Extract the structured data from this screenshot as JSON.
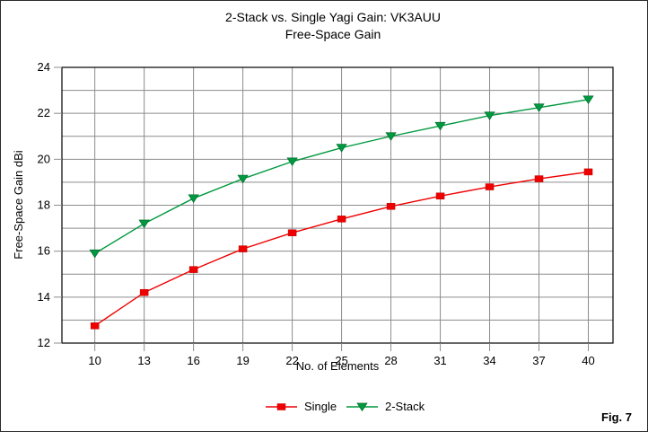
{
  "figure": {
    "title_line1": "2-Stack vs. Single Yagi Gain: VK3AUU",
    "title_line2": "Free-Space Gain",
    "figure_label": "Fig. 7"
  },
  "chart_data": {
    "type": "line",
    "title": "2-Stack vs. Single Yagi Gain: VK3AUU",
    "subtitle": "Free-Space Gain",
    "xlabel": "No. of Elements",
    "ylabel": "Free-Space Gain dBi",
    "x": [
      10,
      13,
      16,
      19,
      22,
      25,
      28,
      31,
      34,
      37,
      40
    ],
    "series": [
      {
        "name": "Single",
        "marker": "square",
        "color": "#ee0000",
        "marker_stroke": "#c00000",
        "values": [
          12.75,
          14.2,
          15.2,
          16.1,
          16.8,
          17.4,
          17.95,
          18.4,
          18.8,
          19.15,
          19.45
        ]
      },
      {
        "name": "2-Stack",
        "marker": "triangle-down",
        "color": "#00993f",
        "marker_stroke": "#006b2c",
        "values": [
          15.9,
          17.2,
          18.3,
          19.15,
          19.9,
          20.5,
          21.0,
          21.45,
          21.9,
          22.25,
          22.6
        ]
      }
    ],
    "xlim": [
      8,
      41.5
    ],
    "ylim": [
      12,
      24
    ],
    "x_ticks": [
      10,
      13,
      16,
      19,
      22,
      25,
      28,
      31,
      34,
      37,
      40
    ],
    "y_tick_step": 2,
    "y_grid_step": 1,
    "grid": true,
    "legend_position": "bottom-center",
    "colors": {
      "grid": "#8c8c8c",
      "tick": "#8c8c8c",
      "frame": "#000000",
      "background": "#ffffff",
      "text": "#000000"
    }
  }
}
